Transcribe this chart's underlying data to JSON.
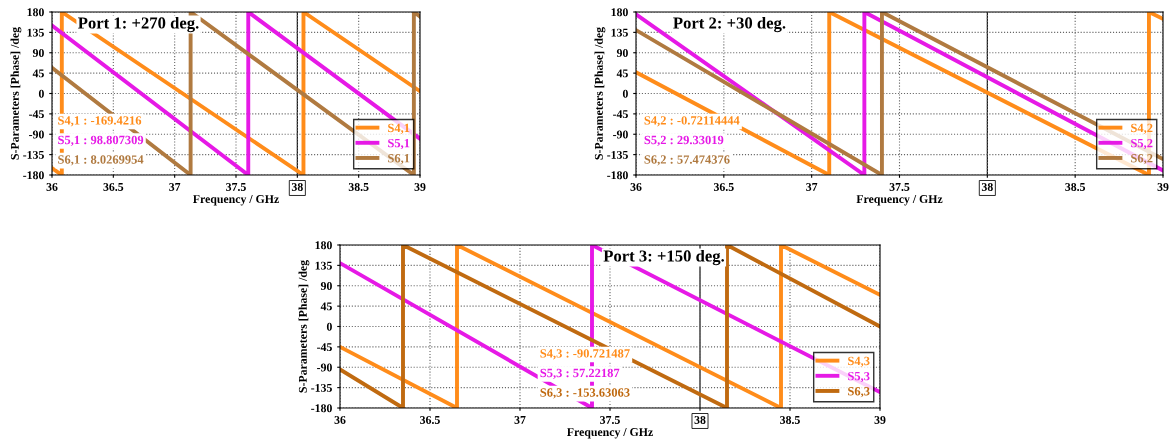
{
  "chart_data": [
    {
      "type": "line",
      "title": "Port 1: +270 deg.",
      "xlabel": "Frequency / GHz",
      "ylabel": "S-Parameters [Phase] /deg",
      "xlim": [
        36,
        39
      ],
      "ylim": [
        -180,
        180
      ],
      "xticks": [
        36,
        36.5,
        37,
        37.5,
        38,
        38.5,
        39
      ],
      "yticks": [
        -180,
        -135,
        -90,
        -45,
        0,
        45,
        90,
        135,
        180
      ],
      "grid": true,
      "legend": "bottom right",
      "ref_lines": [
        {
          "axis": "x",
          "value": 38,
          "color": "#000000"
        }
      ],
      "annotations": [
        "S4,1 : -169.4216",
        "S5,1 : 98.807309",
        "S6,1 : 8.0269954"
      ],
      "series": [
        {
          "name": "S4,1",
          "color": "#ff8c1a",
          "x": [
            36,
            36.08,
            36.08,
            38.05,
            38.05,
            39
          ],
          "values": [
            -165,
            -180,
            180,
            -180,
            180,
            5
          ]
        },
        {
          "name": "S5,1",
          "color": "#e619e6",
          "x": [
            36,
            37.6,
            37.6,
            39
          ],
          "values": [
            150,
            -180,
            180,
            -100
          ]
        },
        {
          "name": "S6,1",
          "color": "#b07a40",
          "x": [
            36,
            37.13,
            37.13,
            38.95,
            38.95,
            39
          ],
          "values": [
            57,
            -180,
            180,
            -180,
            180,
            170
          ]
        }
      ]
    },
    {
      "type": "line",
      "title": "Port 2: +30 deg.",
      "xlabel": "Frequency / GHz",
      "ylabel": "S-Parameters [Phase] /deg",
      "xlim": [
        36,
        39
      ],
      "ylim": [
        -180,
        180
      ],
      "xticks": [
        36,
        36.5,
        37,
        37.5,
        38,
        38.5,
        39
      ],
      "yticks": [
        -180,
        -135,
        -90,
        -45,
        0,
        45,
        90,
        135,
        180
      ],
      "grid": true,
      "legend": "bottom right",
      "ref_lines": [
        {
          "axis": "x",
          "value": 38,
          "color": "#000000"
        }
      ],
      "annotations": [
        "S4,2 : -0.72114444",
        "S5,2 : 29.33019",
        "S6,2 : 57.474376"
      ],
      "series": [
        {
          "name": "S4,2",
          "color": "#ff8c1a",
          "x": [
            36,
            37.1,
            37.1,
            38.92,
            38.92,
            39
          ],
          "values": [
            47,
            -180,
            180,
            -180,
            180,
            165
          ]
        },
        {
          "name": "S5,2",
          "color": "#e619e6",
          "x": [
            36,
            37.3,
            37.3,
            39
          ],
          "values": [
            175,
            -180,
            180,
            -170
          ]
        },
        {
          "name": "S6,2",
          "color": "#b07a40",
          "x": [
            36,
            37.4,
            37.4,
            39
          ],
          "values": [
            140,
            -180,
            180,
            -145
          ]
        }
      ]
    },
    {
      "type": "line",
      "title": "Port 3: +150 deg.",
      "xlabel": "Frequency / GHz",
      "ylabel": "S-Parameters [Phase] /deg",
      "xlim": [
        36,
        39
      ],
      "ylim": [
        -180,
        180
      ],
      "xticks": [
        36,
        36.5,
        37,
        37.5,
        38,
        38.5,
        39
      ],
      "yticks": [
        -180,
        -135,
        -90,
        -45,
        0,
        45,
        90,
        135,
        180
      ],
      "grid": true,
      "legend": "bottom right",
      "ref_lines": [
        {
          "axis": "x",
          "value": 38,
          "color": "#000000"
        }
      ],
      "annotations": [
        "S4,3 : -90.721487",
        "S5,3 : 57.22187",
        "S6,3 : -153.63063"
      ],
      "series": [
        {
          "name": "S4,3",
          "color": "#ff8c1a",
          "x": [
            36,
            36.65,
            36.65,
            38.45,
            38.45,
            39
          ],
          "values": [
            -45,
            -180,
            180,
            -180,
            180,
            70
          ]
        },
        {
          "name": "S5,3",
          "color": "#e619e6",
          "x": [
            36,
            37.4,
            37.4,
            39
          ],
          "values": [
            140,
            -180,
            180,
            -145
          ]
        },
        {
          "name": "S6,3",
          "color": "#c06a10",
          "x": [
            36,
            36.35,
            36.35,
            38.15,
            38.15,
            39
          ],
          "values": [
            -95,
            -180,
            180,
            -180,
            180,
            0
          ]
        }
      ]
    }
  ]
}
